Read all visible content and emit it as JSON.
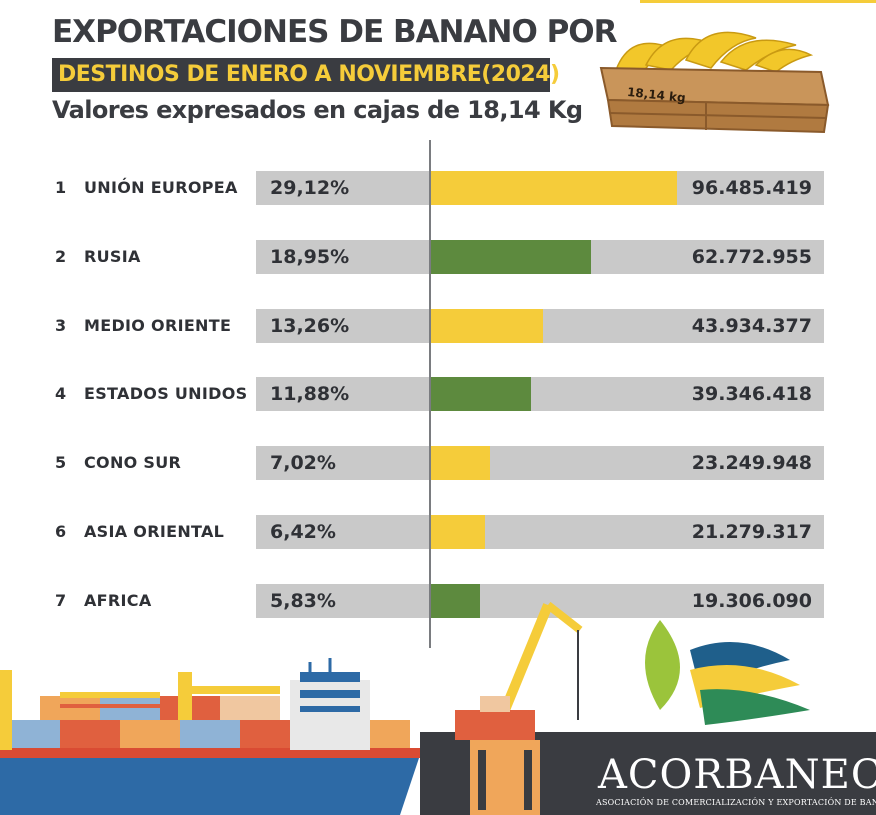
{
  "header": {
    "title_line1": "EXPORTACIONES DE BANANO POR",
    "title_line2": "DESTINOS DE ENERO A NOVIEMBRE(2024)",
    "subtitle": "Valores expresados en cajas de 18,14 Kg",
    "crate_label": "18,14 kg"
  },
  "colors": {
    "yellow": "#f5cc3a",
    "green": "#5d8a3e",
    "gray": "#c9c9c9",
    "dark": "#3a3c41"
  },
  "chart_data": {
    "type": "bar",
    "orientation": "horizontal",
    "categories": [
      "UNIÓN EUROPEA",
      "RUSIA",
      "MEDIO ORIENTE",
      "ESTADOS UNIDOS",
      "CONO SUR",
      "ASIA ORIENTAL",
      "AFRICA"
    ],
    "ranks": [
      "1",
      "2",
      "3",
      "4",
      "5",
      "6",
      "7"
    ],
    "percent_labels": [
      "29,12%",
      "18,95%",
      "13,26%",
      "11,88%",
      "7,02%",
      "6,42%",
      "5,83%"
    ],
    "value_labels": [
      "96.485.419",
      "62.772.955",
      "43.934.377",
      "39.346.418",
      "23.249.948",
      "21.279.317",
      "19.306.090"
    ],
    "values": [
      96485419,
      62772955,
      43934377,
      39346418,
      23249948,
      21279317,
      19306090
    ],
    "percents": [
      29.12,
      18.95,
      13.26,
      11.88,
      7.02,
      6.42,
      5.83
    ],
    "bar_colors": [
      "#f5cc3a",
      "#5d8a3e",
      "#f5cc3a",
      "#5d8a3e",
      "#f5cc3a",
      "#f5cc3a",
      "#5d8a3e"
    ],
    "title": "EXPORTACIONES DE BANANO POR DESTINOS DE ENERO A NOVIEMBRE(2024)",
    "xlabel": "",
    "ylabel": "",
    "grid": false,
    "legend": "none"
  },
  "footer": {
    "brand": "ACORBANEC",
    "brand_subtitle": "ASOCIACIÓN DE COMERCIALIZACIÓN Y EXPORTACIÓN DE BANANO"
  }
}
